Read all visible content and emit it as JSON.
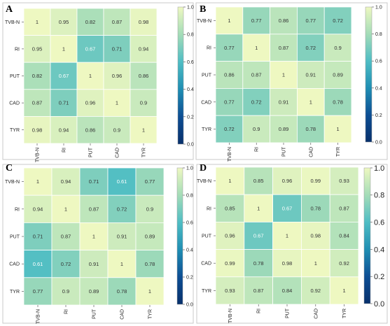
{
  "chart_data": [
    {
      "type": "heatmap",
      "panel": "A",
      "categories": [
        "TVB-N",
        "RI",
        "PUT",
        "CAD",
        "TYR"
      ],
      "values": [
        [
          1,
          0.95,
          0.82,
          0.87,
          0.98
        ],
        [
          0.95,
          1,
          0.67,
          0.71,
          0.94
        ],
        [
          0.82,
          0.67,
          1,
          0.96,
          0.86
        ],
        [
          0.87,
          0.71,
          0.96,
          1,
          0.9
        ],
        [
          0.98,
          0.94,
          0.86,
          0.9,
          1
        ]
      ],
      "colorbar": {
        "range": [
          0,
          1
        ],
        "ticks": [
          "0.0",
          "0.2",
          "0.4",
          "0.6",
          "0.8",
          "1.0"
        ]
      }
    },
    {
      "type": "heatmap",
      "panel": "B",
      "categories": [
        "TVB-N",
        "RI",
        "PUT",
        "CAD",
        "TYR"
      ],
      "values": [
        [
          1,
          0.77,
          0.86,
          0.77,
          0.72
        ],
        [
          0.77,
          1,
          0.87,
          0.72,
          0.9
        ],
        [
          0.86,
          0.87,
          1,
          0.91,
          0.89
        ],
        [
          0.77,
          0.72,
          0.91,
          1,
          0.78
        ],
        [
          0.72,
          0.9,
          0.89,
          0.78,
          1
        ]
      ],
      "colorbar": {
        "range": [
          0,
          1
        ],
        "ticks": [
          "0.0",
          "0.2",
          "0.4",
          "0.6",
          "0.8",
          "1.0"
        ]
      }
    },
    {
      "type": "heatmap",
      "panel": "C",
      "categories": [
        "TVB-N",
        "RI",
        "PUT",
        "CAD",
        "TYR"
      ],
      "values": [
        [
          1,
          0.94,
          0.71,
          0.61,
          0.77
        ],
        [
          0.94,
          1,
          0.87,
          0.72,
          0.9
        ],
        [
          0.71,
          0.87,
          1,
          0.91,
          0.89
        ],
        [
          0.61,
          0.72,
          0.91,
          1,
          0.78
        ],
        [
          0.77,
          0.9,
          0.89,
          0.78,
          1
        ]
      ],
      "colorbar": {
        "range": [
          0,
          1
        ],
        "ticks": [
          "0.0",
          "0.2",
          "0.4",
          "0.6",
          "0.8",
          "1.0"
        ]
      }
    },
    {
      "type": "heatmap",
      "panel": "D",
      "categories": [
        "TVB-N",
        "RI",
        "PUT",
        "CAD",
        "TYR"
      ],
      "values": [
        [
          1,
          0.85,
          0.96,
          0.99,
          0.93
        ],
        [
          0.85,
          1,
          0.67,
          0.78,
          0.87
        ],
        [
          0.96,
          0.67,
          1,
          0.98,
          0.84
        ],
        [
          0.99,
          0.78,
          0.98,
          1,
          0.92
        ],
        [
          0.93,
          0.87,
          0.84,
          0.92,
          1
        ]
      ],
      "colorbar": {
        "range": [
          0,
          1
        ],
        "ticks": [
          "0.0",
          "0.2",
          "0.4",
          "0.6",
          "0.8",
          "1.0"
        ]
      }
    }
  ],
  "colormap": [
    "#08306b",
    "#0d4e94",
    "#1f8eb3",
    "#4fbdc4",
    "#a4dcb8",
    "#eef8c1"
  ]
}
